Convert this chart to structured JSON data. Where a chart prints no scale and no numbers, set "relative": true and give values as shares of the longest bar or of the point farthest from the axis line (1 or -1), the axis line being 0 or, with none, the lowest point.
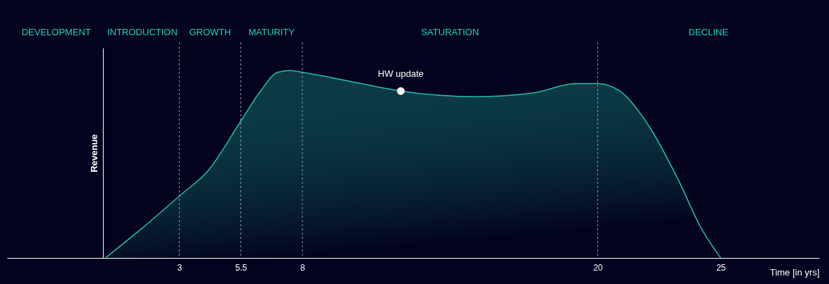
{
  "chart_data": {
    "type": "area",
    "relative": true,
    "xlabel": "Time [in yrs]",
    "ylabel": "Revenue",
    "xlim": [
      -4,
      29
    ],
    "xticks": [
      3,
      5.5,
      8,
      20,
      25
    ],
    "x": [
      0,
      1.5,
      3,
      4.2,
      5.5,
      6.3,
      7,
      7.5,
      8,
      10,
      12,
      15.1,
      17.4,
      19.1,
      20,
      20.9,
      22.1,
      23.3,
      24.2,
      25
    ],
    "series": [
      {
        "color": "#1fbfa8",
        "values": [
          0,
          0.16,
          0.33,
          0.47,
          0.73,
          0.89,
          0.99,
          1,
          0.99,
          0.94,
          0.89,
          0.86,
          0.88,
          0.93,
          0.93,
          0.89,
          0.7,
          0.41,
          0.16,
          0
        ]
      },
      {
        "type": "scatter",
        "color": "#ffffff",
        "x": [
          12
        ],
        "values": [
          0.89
        ]
      }
    ],
    "ref_lines": [
      {
        "axis": "x",
        "value": 3,
        "line_style": "dashed"
      },
      {
        "axis": "x",
        "value": 5.5,
        "line_style": "dashed"
      },
      {
        "axis": "x",
        "value": 8,
        "line_style": "dashed"
      },
      {
        "axis": "x",
        "value": 20,
        "line_style": "dashed"
      }
    ],
    "annotations": [
      "DEVELOPMENT",
      "INTRODUCTION",
      "GROWTH",
      "MATURITY",
      "SATURATION",
      "DECLINE",
      {
        "text": "HW update",
        "x": 12,
        "y": 0.89
      }
    ]
  }
}
